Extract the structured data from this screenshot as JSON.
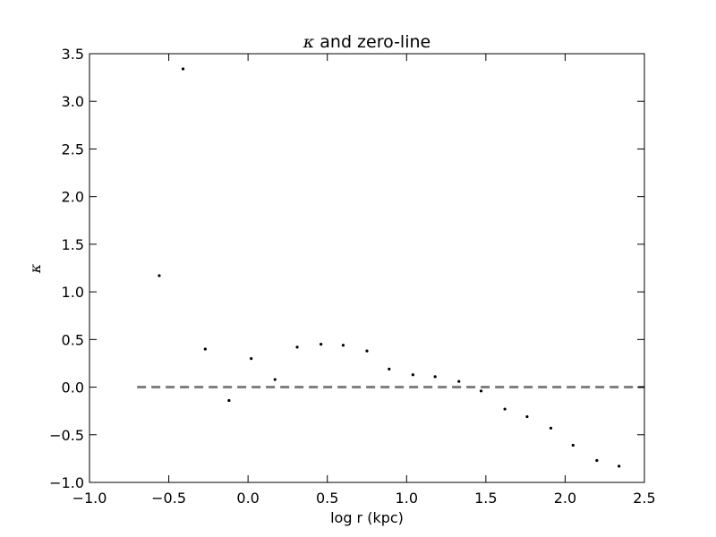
{
  "chart_data": {
    "type": "scatter",
    "title": "κ and zero-line",
    "title_symbol": "κ",
    "title_text": " and zero-line",
    "xlabel": "log r (kpc)",
    "ylabel": "κ",
    "xlim": [
      -1.0,
      2.5
    ],
    "ylim": [
      -1.0,
      3.5
    ],
    "xticks": [
      -1.0,
      -0.5,
      0.0,
      0.5,
      1.0,
      1.5,
      2.0,
      2.5
    ],
    "yticks": [
      -1.0,
      -0.5,
      0.0,
      0.5,
      1.0,
      1.5,
      2.0,
      2.5,
      3.0,
      3.5
    ],
    "xtick_labels": [
      "−1.0",
      "−0.5",
      "0.0",
      "0.5",
      "1.0",
      "1.5",
      "2.0",
      "2.5"
    ],
    "ytick_labels": [
      "−1.0",
      "−0.5",
      "0.0",
      "0.5",
      "1.0",
      "1.5",
      "2.0",
      "2.5",
      "3.0",
      "3.5"
    ],
    "grid": false,
    "series": [
      {
        "style": "points",
        "color": "#000000",
        "x": [
          -0.56,
          -0.41,
          -0.27,
          -0.12,
          0.02,
          0.17,
          0.31,
          0.46,
          0.6,
          0.75,
          0.89,
          1.04,
          1.18,
          1.33,
          1.47,
          1.62,
          1.76,
          1.91,
          2.05,
          2.2,
          2.34
        ],
        "y": [
          1.17,
          3.34,
          0.4,
          -0.14,
          0.3,
          0.08,
          0.42,
          0.45,
          0.44,
          0.38,
          0.19,
          0.13,
          0.11,
          0.06,
          -0.04,
          -0.23,
          -0.31,
          -0.43,
          -0.61,
          -0.77,
          -0.83
        ]
      },
      {
        "style": "dashed-line",
        "color": "#808080",
        "x": [
          -0.7,
          2.5
        ],
        "y": [
          0.0,
          0.0
        ]
      }
    ]
  }
}
